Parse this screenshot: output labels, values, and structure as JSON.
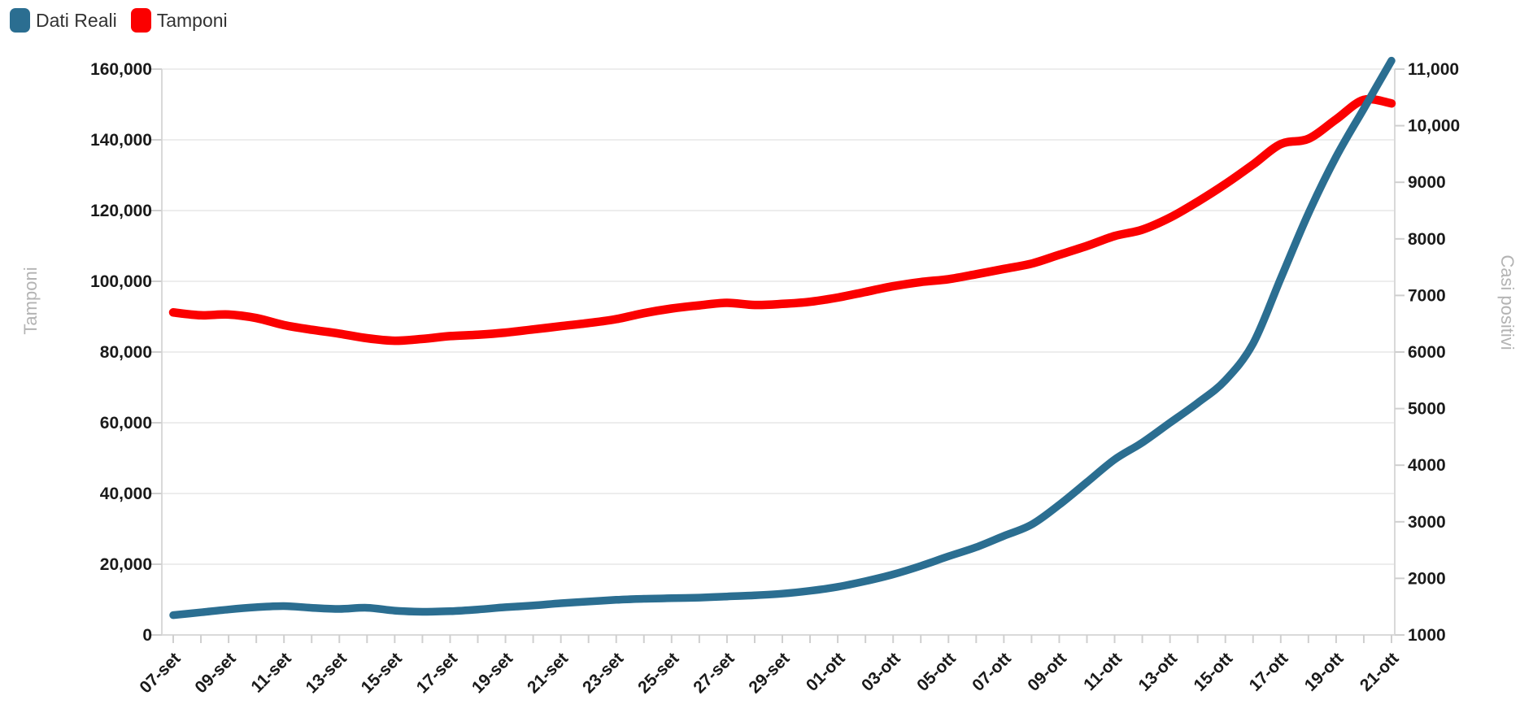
{
  "legend": {
    "items": [
      {
        "label": "Dati Reali",
        "color": "#2B6E91"
      },
      {
        "label": "Tamponi",
        "color": "#FB0000"
      }
    ]
  },
  "styles": {
    "background": "#ffffff",
    "grid_color": "#ededed",
    "spine_color": "#d9d9d9",
    "tick_mark_color": "#cfcfcf",
    "tick_label_color": "#1a1a1a",
    "axis_title_color": "#b3b3b3"
  },
  "chart_data": {
    "type": "line",
    "title": "",
    "grid": "horizontal",
    "legend_position": "top-left",
    "x": [
      "07-set",
      "08-set",
      "09-set",
      "10-set",
      "11-set",
      "12-set",
      "13-set",
      "14-set",
      "15-set",
      "16-set",
      "17-set",
      "18-set",
      "19-set",
      "20-set",
      "21-set",
      "22-set",
      "23-set",
      "24-set",
      "25-set",
      "26-set",
      "27-set",
      "28-set",
      "29-set",
      "30-set",
      "01-ott",
      "02-ott",
      "03-ott",
      "04-ott",
      "05-ott",
      "06-ott",
      "07-ott",
      "08-ott",
      "09-ott",
      "10-ott",
      "11-ott",
      "12-ott",
      "13-ott",
      "14-ott",
      "15-ott",
      "16-ott",
      "17-ott",
      "18-ott",
      "19-ott",
      "20-ott",
      "21-ott"
    ],
    "x_tick_labels": [
      "07-set",
      "09-set",
      "11-set",
      "13-set",
      "15-set",
      "17-set",
      "19-set",
      "21-set",
      "23-set",
      "25-set",
      "27-set",
      "29-set",
      "01-ott",
      "03-ott",
      "05-ott",
      "07-ott",
      "09-ott",
      "11-ott",
      "13-ott",
      "15-ott",
      "17-ott",
      "19-ott",
      "21-ott"
    ],
    "left_axis": {
      "label": "Tamponi",
      "min": 0,
      "max": 160000,
      "step": 20000,
      "tick_labels": [
        "0",
        "20,000",
        "40,000",
        "60,000",
        "80,000",
        "100,000",
        "120,000",
        "140,000",
        "160,000"
      ]
    },
    "right_axis": {
      "label": "Casi positivi",
      "min": 1000,
      "max": 11000,
      "step": 1000,
      "tick_labels": [
        "1000",
        "2000",
        "3000",
        "4000",
        "5000",
        "6000",
        "7000",
        "8000",
        "9000",
        "10,000",
        "11,000"
      ]
    },
    "series": [
      {
        "name": "Dati Reali",
        "axis": "right",
        "color": "#2B6E91",
        "line_width": 9.5,
        "values": [
          1350,
          1400,
          1450,
          1490,
          1510,
          1480,
          1460,
          1480,
          1430,
          1410,
          1420,
          1450,
          1490,
          1520,
          1560,
          1590,
          1620,
          1640,
          1650,
          1660,
          1680,
          1700,
          1730,
          1780,
          1850,
          1950,
          2070,
          2220,
          2390,
          2550,
          2750,
          2950,
          3300,
          3700,
          4100,
          4400,
          4750,
          5100,
          5500,
          6150,
          7300,
          8450,
          9450,
          10300,
          11150
        ]
      },
      {
        "name": "Tamponi",
        "axis": "left",
        "color": "#FB0000",
        "line_width": 10.5,
        "values": [
          91200,
          90400,
          90600,
          89600,
          87600,
          86300,
          85200,
          83900,
          83200,
          83700,
          84500,
          84900,
          85500,
          86400,
          87300,
          88200,
          89300,
          91000,
          92300,
          93200,
          93900,
          93300,
          93600,
          94200,
          95400,
          97000,
          98600,
          99800,
          100600,
          102000,
          103500,
          105000,
          107500,
          110000,
          112800,
          114600,
          118000,
          122500,
          127500,
          133000,
          138800,
          140300,
          145800,
          151300,
          150300
        ]
      }
    ]
  }
}
